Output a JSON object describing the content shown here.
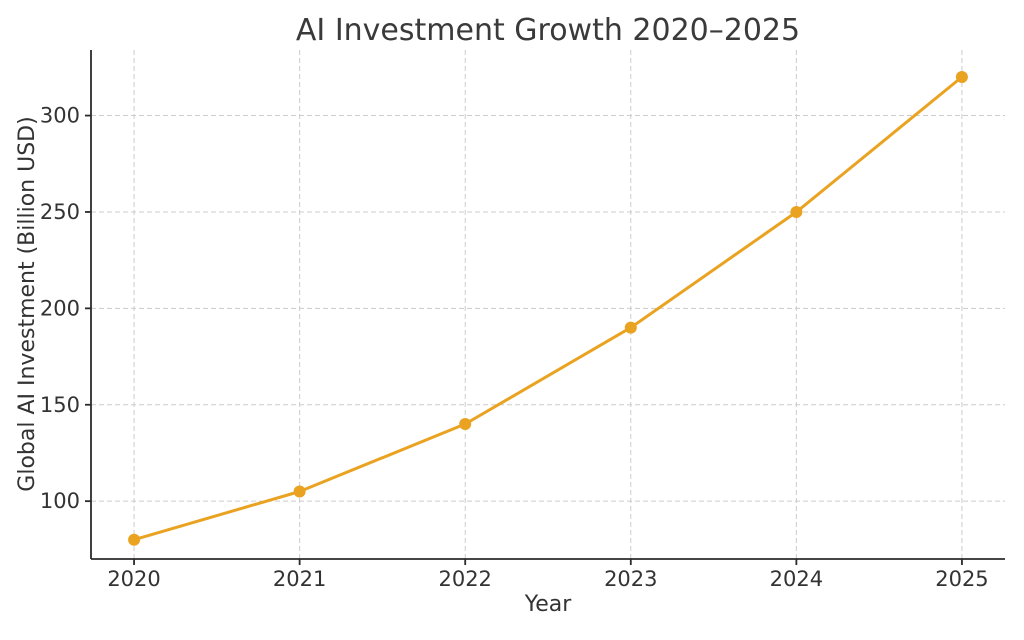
{
  "chart_data": {
    "type": "line",
    "title": "AI Investment Growth 2020–2025",
    "xlabel": "Year",
    "ylabel": "Global AI Investment (Billion USD)",
    "x": [
      2020,
      2021,
      2022,
      2023,
      2024,
      2025
    ],
    "series": [
      {
        "name": "Global AI Investment (Billion USD)",
        "values": [
          80,
          105,
          140,
          190,
          250,
          320
        ],
        "color": "#EAA221",
        "marker": "circle",
        "line_width": 3,
        "marker_radius": 6
      }
    ],
    "xticks": [
      "2020",
      "2021",
      "2022",
      "2023",
      "2024",
      "2025"
    ],
    "yticks": [
      100,
      150,
      200,
      250,
      300
    ],
    "xlim": [
      2019.74,
      2025.26
    ],
    "ylim": [
      70,
      334
    ],
    "grid": true,
    "grid_style": "dashed",
    "legend_position": "none",
    "colors": {
      "line": "#EAA221",
      "grid": "#cccccc",
      "spine": "#2b2b2b",
      "tick_text": "#333333",
      "title_text": "#3a3a3a"
    }
  }
}
